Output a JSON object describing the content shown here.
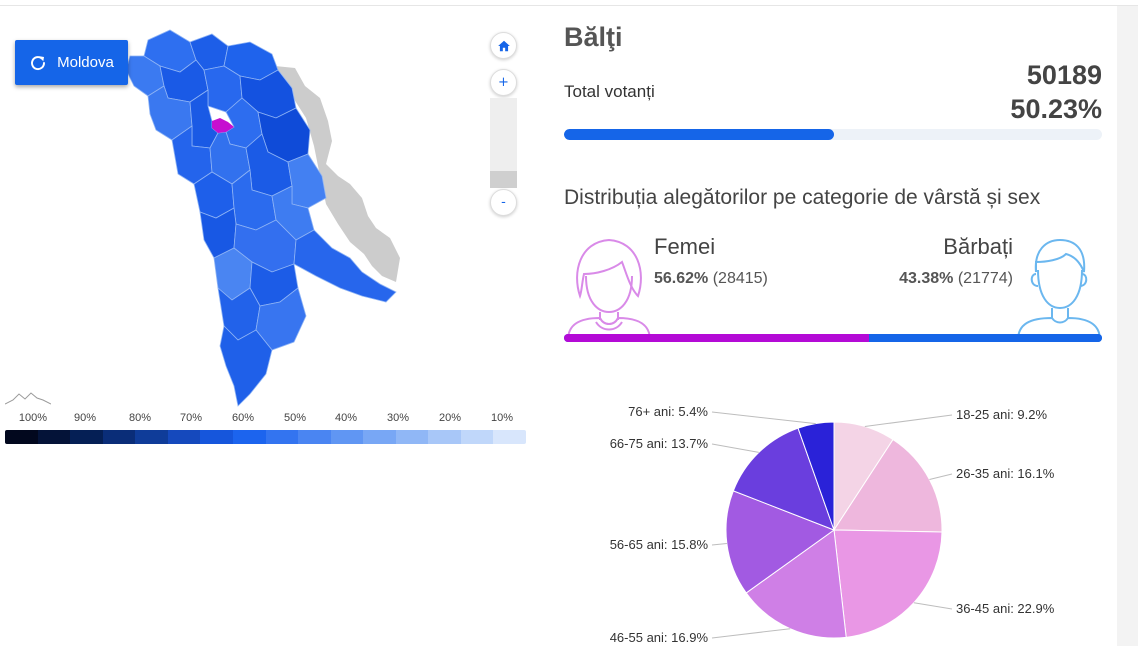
{
  "map": {
    "reset_button_label": "Moldova",
    "zoom_in_label": "+",
    "zoom_out_label": "-",
    "legend_labels": [
      "100%",
      "90%",
      "80%",
      "70%",
      "60%",
      "50%",
      "40%",
      "30%",
      "20%",
      "10%"
    ],
    "legend_colors": [
      "#02081e",
      "#041338",
      "#051f55",
      "#0a2d78",
      "#0f3c99",
      "#1549bd",
      "#1656dc",
      "#1c64ee",
      "#3374f0",
      "#4a85f2",
      "#6096f3",
      "#78a7f5",
      "#90b7f6",
      "#a8c7f8",
      "#c0d7fa",
      "#d8e6fc"
    ],
    "region_colors": [
      "#2e6ff0",
      "#1d5ee8",
      "#1f63ec",
      "#3b7af1",
      "#1a5ae6",
      "#2868ee",
      "#1452e0",
      "#3a78f0",
      "#1a5ae5",
      "#2d6def",
      "#0f4bd8",
      "#2464ec",
      "#3271ee",
      "#1b5be6",
      "#4380f2",
      "#1e5fea",
      "#2b6bee",
      "#3e7cf1",
      "#1858e4",
      "#336fef",
      "#2766ec",
      "#4a85f2",
      "#1c5ce7",
      "#2262ea",
      "#3875f0",
      "#1f60e9"
    ],
    "selected_region_color": "#c60fd0",
    "inactive_color": "#cccccc"
  },
  "summary": {
    "city": "Bălţi",
    "total_label": "Total votanți",
    "total_count": "50189",
    "total_percent": "50.23%",
    "turnout_fraction": 0.5023,
    "accent": "#1565e8"
  },
  "distribution": {
    "title": "Distribuția alegătorilor pe categorie de vârstă și sex",
    "female": {
      "label": "Femei",
      "percent": "56.62%",
      "count": "(28415)",
      "fraction": 0.5662,
      "color": "#b40ad6"
    },
    "male": {
      "label": "Bărbați",
      "percent": "43.38%",
      "count": "(21774)",
      "fraction": 0.4338,
      "color": "#1565e8"
    }
  },
  "chart_data": {
    "type": "pie",
    "title": "",
    "slices": [
      {
        "label": "18-25 ani: 9.2%",
        "value": 9.2,
        "color": "#f4d4e6"
      },
      {
        "label": "26-35 ani: 16.1%",
        "value": 16.1,
        "color": "#eeb7dd"
      },
      {
        "label": "36-45 ani: 22.9%",
        "value": 22.9,
        "color": "#e997e5"
      },
      {
        "label": "46-55 ani: 16.9%",
        "value": 16.9,
        "color": "#cf7fe6"
      },
      {
        "label": "56-65 ani: 15.8%",
        "value": 15.8,
        "color": "#a25ae2"
      },
      {
        "label": "66-75 ani: 13.7%",
        "value": 13.7,
        "color": "#6a3ede"
      },
      {
        "label": "76+ ani: 5.4%",
        "value": 5.4,
        "color": "#2a22d8"
      }
    ]
  }
}
